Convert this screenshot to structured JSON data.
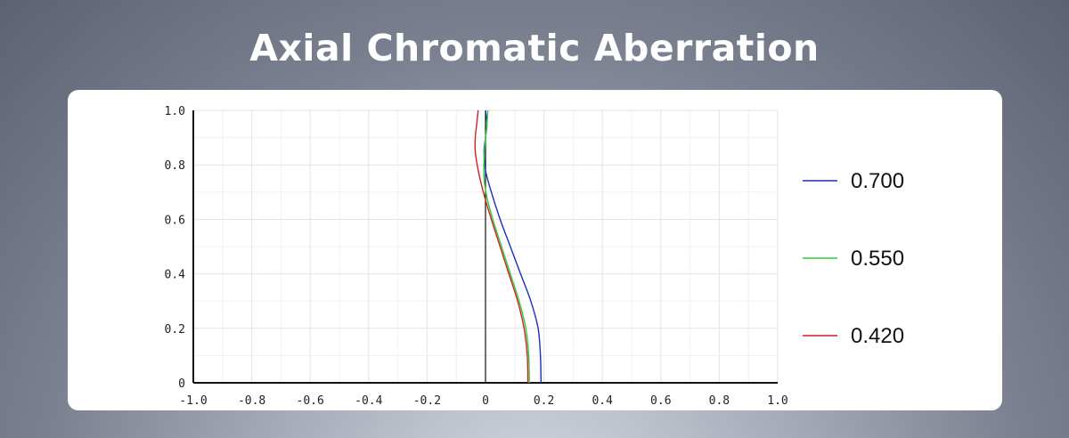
{
  "title": "Axial Chromatic Aberration",
  "chart_data": {
    "type": "line",
    "xlim": [
      -1.0,
      1.0
    ],
    "ylim": [
      0,
      1.0
    ],
    "x_ticks": [
      "-1.0",
      "-0.8",
      "-0.6",
      "-0.4",
      "-0.2",
      "0",
      "0.2",
      "0.4",
      "0.6",
      "0.8",
      "1.0"
    ],
    "y_ticks": [
      "0",
      "0.2",
      "0.4",
      "0.6",
      "0.8",
      "1.0"
    ],
    "grid": true,
    "legend_position": "right",
    "series": [
      {
        "name": "0.700",
        "color": "#1f2dbf",
        "points": [
          [
            0.19,
            0.0
          ],
          [
            0.188,
            0.1
          ],
          [
            0.18,
            0.2
          ],
          [
            0.155,
            0.3
          ],
          [
            0.12,
            0.4
          ],
          [
            0.085,
            0.5
          ],
          [
            0.05,
            0.6
          ],
          [
            0.02,
            0.7
          ],
          [
            0.0,
            0.78
          ],
          [
            -0.005,
            0.85
          ],
          [
            0.0,
            0.9
          ],
          [
            0.005,
            0.95
          ],
          [
            0.0,
            1.0
          ]
        ]
      },
      {
        "name": "0.550",
        "color": "#2ccf3a",
        "points": [
          [
            0.15,
            0.0
          ],
          [
            0.148,
            0.1
          ],
          [
            0.138,
            0.2
          ],
          [
            0.115,
            0.3
          ],
          [
            0.085,
            0.4
          ],
          [
            0.055,
            0.5
          ],
          [
            0.025,
            0.6
          ],
          [
            0.005,
            0.68
          ],
          [
            -0.005,
            0.75
          ],
          [
            -0.005,
            0.82
          ],
          [
            0.0,
            0.9
          ],
          [
            0.005,
            0.95
          ],
          [
            0.008,
            1.0
          ]
        ]
      },
      {
        "name": "0.420",
        "color": "#d21f1f",
        "points": [
          [
            0.145,
            0.0
          ],
          [
            0.143,
            0.1
          ],
          [
            0.132,
            0.2
          ],
          [
            0.11,
            0.3
          ],
          [
            0.08,
            0.4
          ],
          [
            0.05,
            0.5
          ],
          [
            0.02,
            0.6
          ],
          [
            -0.005,
            0.69
          ],
          [
            -0.025,
            0.78
          ],
          [
            -0.035,
            0.85
          ],
          [
            -0.035,
            0.9
          ],
          [
            -0.03,
            0.95
          ],
          [
            -0.025,
            1.0
          ]
        ]
      }
    ]
  }
}
